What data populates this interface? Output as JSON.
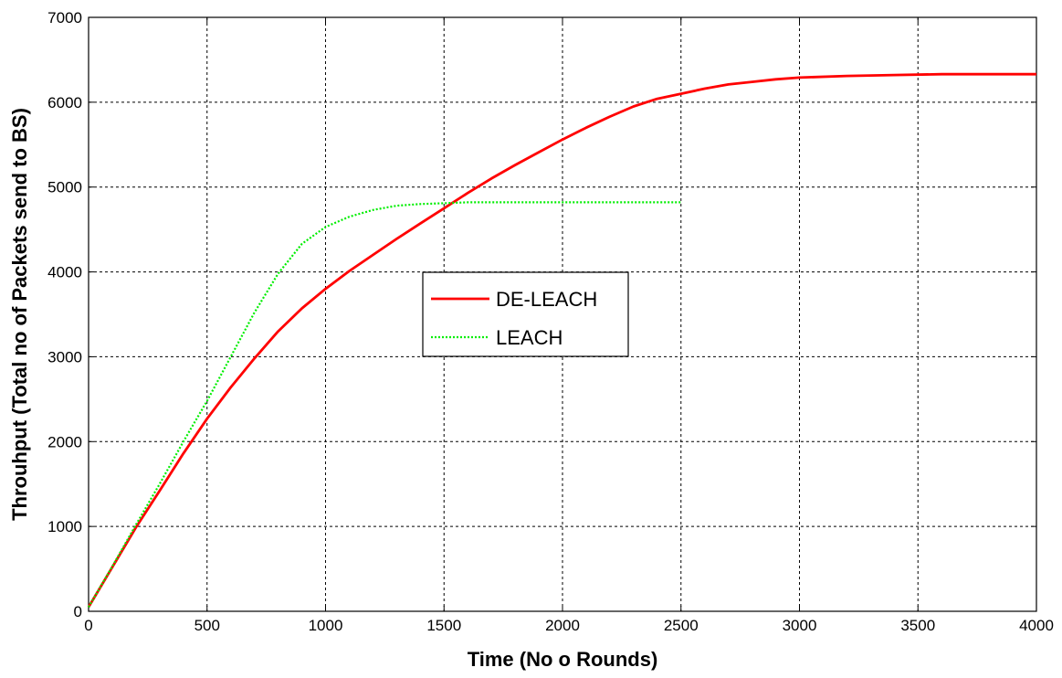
{
  "chart_data": {
    "type": "line",
    "title": "",
    "xlabel": "Time (No o Rounds)",
    "ylabel": "Throuhput (Total no of Packets send to BS)",
    "xlim": [
      0,
      4000
    ],
    "ylim": [
      0,
      7000
    ],
    "xticks": [
      0,
      500,
      1000,
      1500,
      2000,
      2500,
      3000,
      3500,
      4000
    ],
    "yticks": [
      0,
      1000,
      2000,
      3000,
      4000,
      5000,
      6000,
      7000
    ],
    "grid": true,
    "legend_position": "center",
    "series": [
      {
        "name": "DE-LEACH",
        "color": "#ff0000",
        "style": "solid",
        "x": [
          0,
          100,
          200,
          300,
          400,
          500,
          600,
          700,
          800,
          900,
          1000,
          1100,
          1200,
          1300,
          1400,
          1500,
          1600,
          1700,
          1800,
          1900,
          2000,
          2100,
          2200,
          2300,
          2400,
          2500,
          2600,
          2700,
          2800,
          2900,
          3000,
          3200,
          3400,
          3600,
          3800,
          4000
        ],
        "y": [
          50,
          520,
          990,
          1420,
          1860,
          2270,
          2640,
          2980,
          3300,
          3570,
          3800,
          4010,
          4200,
          4390,
          4570,
          4750,
          4930,
          5100,
          5260,
          5410,
          5560,
          5700,
          5830,
          5950,
          6040,
          6100,
          6160,
          6210,
          6240,
          6270,
          6290,
          6310,
          6320,
          6330,
          6330,
          6330
        ]
      },
      {
        "name": "LEACH",
        "color": "#00ee00",
        "style": "dotted",
        "x": [
          0,
          100,
          200,
          300,
          400,
          500,
          600,
          700,
          800,
          900,
          1000,
          1100,
          1200,
          1300,
          1400,
          1500,
          1600,
          1700,
          1800,
          2000,
          2200,
          2500
        ],
        "y": [
          50,
          530,
          1020,
          1500,
          2000,
          2480,
          3000,
          3520,
          3980,
          4330,
          4530,
          4650,
          4730,
          4780,
          4800,
          4810,
          4820,
          4820,
          4820,
          4820,
          4820,
          4820
        ]
      }
    ]
  }
}
